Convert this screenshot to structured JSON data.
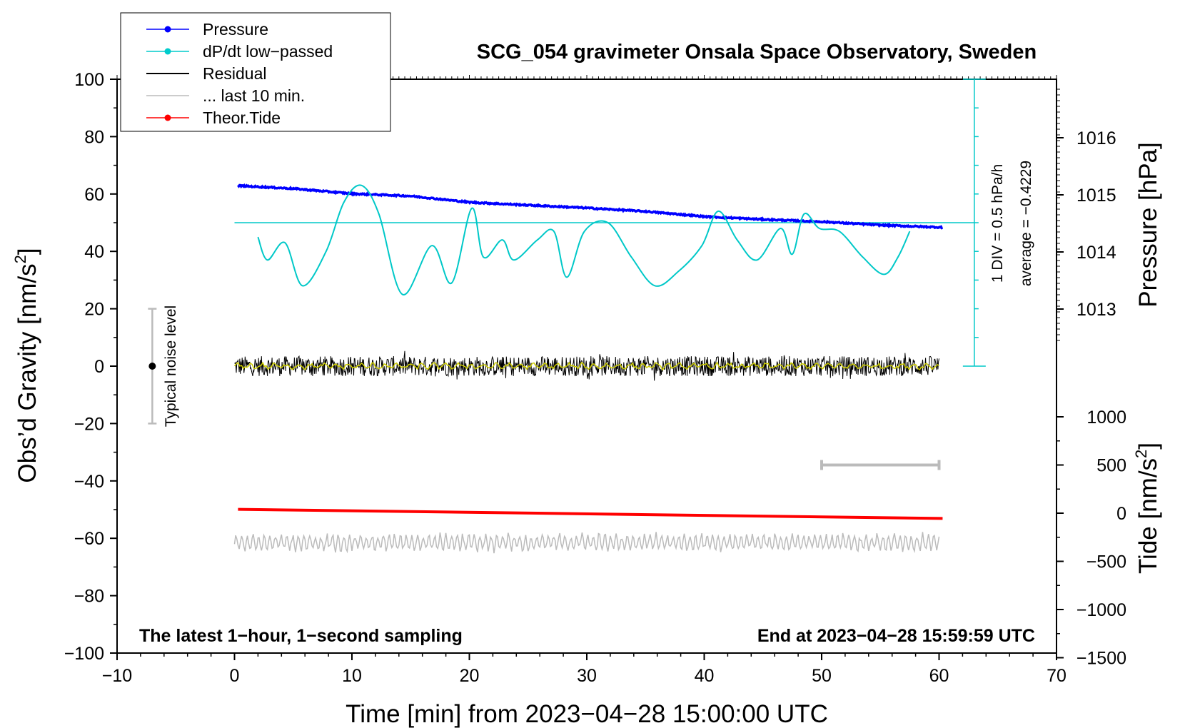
{
  "chart_data": {
    "type": "line",
    "title": "SCG_054 gravimeter Onsala Space Observatory, Sweden",
    "xlabel": "Time [min] from 2023−04−28 15:00:00 UTC",
    "xlim": [
      -10,
      70
    ],
    "x_ticks": [
      -10,
      0,
      10,
      20,
      30,
      40,
      50,
      60,
      70
    ],
    "x_tick_labels": [
      "−10",
      "0",
      "10",
      "20",
      "30",
      "40",
      "50",
      "60",
      "70"
    ],
    "left_axis": {
      "label_main": "Obs’d Gravity [nm/s",
      "label_sup": "2",
      "label_end": "]",
      "ylim": [
        -100,
        100
      ],
      "ticks": [
        100,
        80,
        60,
        40,
        20,
        0,
        -20,
        -40,
        -60,
        -80,
        -100
      ],
      "tick_labels": [
        "100",
        "80",
        "60",
        "40",
        "20",
        "0",
        "−20",
        "−40",
        "−60",
        "−80",
        "−100"
      ]
    },
    "pressure_axis": {
      "label": "Pressure [hPa]",
      "ticks": [
        1016,
        1015,
        1014,
        1013
      ],
      "tick_labels": [
        "1016",
        "1015",
        "1014",
        "1013"
      ]
    },
    "tide_axis": {
      "label_main": "Tide [nm/s",
      "label_sup": "2",
      "label_end": "]",
      "ticks": [
        1000,
        500,
        0,
        -500,
        -1000,
        -1500
      ],
      "tick_labels": [
        "1000",
        "500",
        "0",
        "−500",
        "−1000",
        "−1500"
      ]
    },
    "legend": {
      "position": "top-left",
      "entries": [
        {
          "name": "Pressure",
          "color": "#0000ff",
          "marker": true
        },
        {
          "name": "dP/dt low−passed",
          "color": "#00cccc",
          "marker": true
        },
        {
          "name": "Residual",
          "color": "#000000",
          "marker": false
        },
        {
          "name": "... last 10 min.",
          "color": "#bbbbbb",
          "marker": false
        },
        {
          "name": "Theor.Tide",
          "color": "#ff0000",
          "marker": true
        }
      ]
    },
    "dpdt_scale": {
      "label_div": "1 DIV = 0.5 hPa/h",
      "label_avg": "average = −0.4229",
      "baseline_gravity": 50,
      "axis_x": 63,
      "axis_range_gravity": [
        0,
        100
      ]
    },
    "noise_level": {
      "label": "Typical noise level",
      "x": -7,
      "center": 0,
      "range": [
        -20,
        20
      ]
    },
    "last_10min_bar": {
      "x_start": 50,
      "x_end": 60,
      "tide_value": 500
    },
    "annotations": {
      "bottom_left": "The latest 1−hour, 1−second sampling",
      "bottom_right": "End at 2023−04−28 15:59:59 UTC"
    },
    "series": [
      {
        "name": "Pressure",
        "units": "hPa",
        "color": "#0000ff",
        "x": [
          0.3,
          5,
          10,
          15,
          20,
          25,
          30,
          35,
          40,
          45,
          50,
          55,
          60.3
        ],
        "y": [
          1015.16,
          1015.11,
          1015.02,
          1014.98,
          1014.87,
          1014.82,
          1014.77,
          1014.71,
          1014.62,
          1014.57,
          1014.53,
          1014.47,
          1014.43
        ]
      },
      {
        "name": "dP/dt low−passed",
        "units": "nm/s²-equivalent",
        "color": "#00cccc",
        "x": [
          2,
          2.8,
          4.3,
          5.8,
          7.8,
          9.3,
          10.8,
          12.3,
          14.3,
          16.8,
          18.5,
          20.2,
          21.2,
          22.8,
          23.8,
          25.8,
          27.2,
          28.3,
          29.8,
          31.8,
          33.8,
          35.8,
          37.8,
          39.8,
          41.2,
          42.8,
          44.5,
          46.5,
          47.5,
          48.5,
          49.8,
          51.5,
          53.5,
          55.3,
          56.5,
          57.5
        ],
        "y": [
          45,
          37,
          43,
          28,
          40,
          57,
          63,
          53,
          25,
          42,
          29,
          55,
          38,
          44,
          37,
          44,
          47,
          31,
          47,
          50,
          38,
          28,
          33,
          42,
          54,
          44,
          37,
          48,
          39,
          53,
          48,
          47,
          38,
          32,
          38,
          47
        ]
      },
      {
        "name": "Residual",
        "units": "nm/s²",
        "color": "#000000",
        "x_range": [
          0,
          60
        ],
        "level": 0,
        "amplitude": 3.5
      },
      {
        "name": "Residual smoothed",
        "units": "nm/s²",
        "color": "#cccc00",
        "x_range": [
          0,
          60
        ],
        "level": 0,
        "amplitude": 1.2
      },
      {
        "name": "... last 10 min.",
        "units": "nm/s²",
        "color": "#bbbbbb",
        "x_range": [
          0,
          60
        ],
        "level": -61.5,
        "amplitude": 3.2
      },
      {
        "name": "Theor.Tide",
        "units": "nm/s²",
        "color": "#ff0000",
        "x": [
          0.3,
          60.3
        ],
        "y": [
          40,
          -55
        ]
      }
    ]
  }
}
